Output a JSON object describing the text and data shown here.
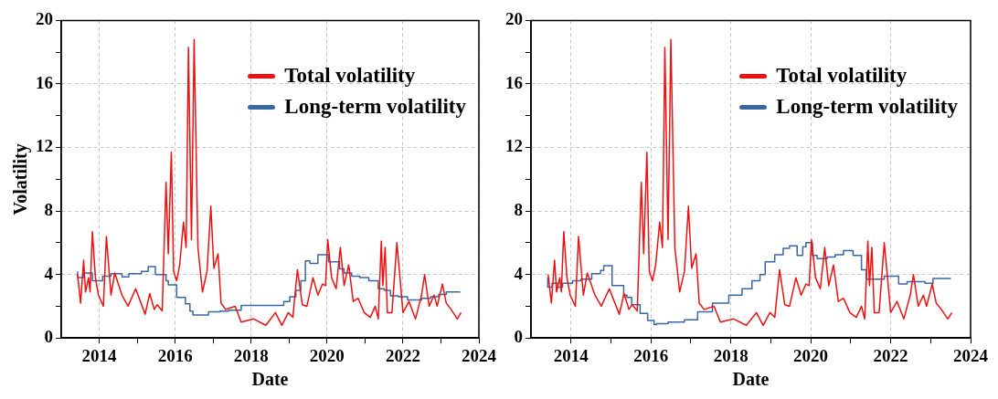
{
  "chart_data": [
    {
      "type": "line",
      "xlabel": "Date",
      "ylabel": "Volatility",
      "xlim": [
        2013,
        2024
      ],
      "ylim": [
        0,
        20
      ],
      "xticks": [
        2014,
        {
          "value": 2015,
          "label": null
        },
        2016,
        {
          "value": 2017,
          "label": null
        },
        2018,
        {
          "value": 2019,
          "label": null
        },
        2020,
        {
          "value": 2021,
          "label": null
        },
        2022,
        {
          "value": 2023,
          "label": null
        },
        2024
      ],
      "yticks": [
        0,
        {
          "value": 2,
          "label": null
        },
        4,
        {
          "value": 6,
          "label": null
        },
        8,
        {
          "value": 10,
          "label": null
        },
        12,
        {
          "value": 14,
          "label": null
        },
        16,
        {
          "value": 18,
          "label": null
        },
        20
      ],
      "grid": true,
      "legend": "top right",
      "series": [
        {
          "name": "Total volatility",
          "type": "line",
          "color": "#ee1111",
          "x": [
            2013.43,
            2013.51,
            2013.59,
            2013.64,
            2013.72,
            2013.76,
            2013.82,
            2013.9,
            2013.98,
            2014.11,
            2014.19,
            2014.31,
            2014.41,
            2014.6,
            2014.76,
            2014.96,
            2015.21,
            2015.33,
            2015.45,
            2015.53,
            2015.66,
            2015.76,
            2015.82,
            2015.9,
            2015.96,
            2016.04,
            2016.12,
            2016.22,
            2016.29,
            2016.35,
            2016.43,
            2016.5,
            2016.6,
            2016.72,
            2016.84,
            2016.94,
            2017.02,
            2017.13,
            2017.21,
            2017.33,
            2017.58,
            2017.74,
            2018.07,
            2018.39,
            2018.64,
            2018.81,
            2018.98,
            2019.1,
            2019.22,
            2019.35,
            2019.47,
            2019.63,
            2019.76,
            2019.88,
            2019.96,
            2020.02,
            2020.12,
            2020.24,
            2020.35,
            2020.45,
            2020.57,
            2020.69,
            2020.82,
            2020.98,
            2021.14,
            2021.27,
            2021.35,
            2021.43,
            2021.47,
            2021.53,
            2021.59,
            2021.71,
            2021.84,
            2021.9,
            2022,
            2022.16,
            2022.33,
            2022.49,
            2022.57,
            2022.69,
            2022.82,
            2022.9,
            2023.04,
            2023.14,
            2023.27,
            2023.43,
            2023.53
          ],
          "values": [
            4.0,
            2.2,
            4.9,
            2.9,
            3.8,
            2.9,
            6.7,
            3.8,
            2.7,
            2.0,
            6.4,
            2.7,
            4.1,
            2.7,
            2.0,
            3.1,
            1.5,
            2.8,
            1.8,
            2.1,
            1.7,
            9.8,
            5.3,
            11.7,
            4.2,
            3.6,
            4.6,
            7.3,
            5.7,
            18.3,
            6.2,
            18.8,
            5.7,
            2.9,
            4.2,
            8.3,
            4.4,
            5.3,
            2.2,
            1.8,
            2.0,
            1.0,
            1.2,
            0.8,
            1.6,
            0.8,
            1.6,
            1.3,
            4.3,
            2.1,
            2.0,
            3.8,
            2.7,
            3.4,
            3.3,
            6.2,
            3.8,
            3.1,
            5.7,
            3.3,
            4.6,
            2.3,
            2.5,
            1.6,
            1.3,
            2.0,
            1.2,
            6.1,
            3.3,
            5.7,
            1.6,
            1.6,
            6.0,
            4.4,
            1.6,
            2.3,
            1.2,
            2.7,
            4.0,
            2.0,
            2.7,
            2.0,
            3.4,
            2.2,
            1.8,
            1.2,
            1.6
          ]
        },
        {
          "name": "Long-term volatility",
          "type": "step",
          "color": "#3a67a3",
          "x": [
            2013.43,
            2013.59,
            2013.82,
            2014.09,
            2014.31,
            2014.6,
            2014.78,
            2015.11,
            2015.29,
            2015.48,
            2015.76,
            2015.82,
            2016.04,
            2016.27,
            2016.39,
            2016.47,
            2016.88,
            2017.18,
            2017.41,
            2017.74,
            2018.86,
            2019.02,
            2019.18,
            2019.31,
            2019.43,
            2019.55,
            2019.76,
            2020.04,
            2020.33,
            2020.45,
            2020.65,
            2020.86,
            2021.1,
            2021.35,
            2021.51,
            2021.67,
            2021.88,
            2022.12,
            2022.49,
            2022.73,
            2022.94,
            2023.14,
            2023.27,
            2023.51
          ],
          "values": [
            4.2,
            3.8,
            4.1,
            3.6,
            3.9,
            4.05,
            3.85,
            4.05,
            4.2,
            4.5,
            4.0,
            3.6,
            3.35,
            2.55,
            2.15,
            1.7,
            1.45,
            1.65,
            1.7,
            1.75,
            2.05,
            2.3,
            2.6,
            3.0,
            3.6,
            4.85,
            4.7,
            5.25,
            4.8,
            4.35,
            4.1,
            3.9,
            3.8,
            3.6,
            3.1,
            3.0,
            2.65,
            2.6,
            2.4,
            2.5,
            2.6,
            2.75,
            2.9,
            2.9
          ]
        }
      ]
    },
    {
      "type": "line",
      "xlabel": "Date",
      "xlim": [
        2013,
        2024
      ],
      "ylim": [
        0,
        20
      ],
      "xticks": [
        2014,
        {
          "value": 2015,
          "label": null
        },
        2016,
        {
          "value": 2017,
          "label": null
        },
        2018,
        {
          "value": 2019,
          "label": null
        },
        2020,
        {
          "value": 2021,
          "label": null
        },
        2022,
        {
          "value": 2023,
          "label": null
        },
        2024
      ],
      "yticks": [
        0,
        {
          "value": 2,
          "label": null
        },
        4,
        {
          "value": 6,
          "label": null
        },
        8,
        {
          "value": 10,
          "label": null
        },
        12,
        {
          "value": 14,
          "label": null
        },
        16,
        {
          "value": 18,
          "label": null
        },
        20
      ],
      "grid": true,
      "legend": "top right",
      "series": [
        {
          "name": "Total volatility",
          "type": "line",
          "color": "#ee1111",
          "x": [
            2013.43,
            2013.51,
            2013.59,
            2013.64,
            2013.72,
            2013.76,
            2013.82,
            2013.9,
            2013.98,
            2014.11,
            2014.19,
            2014.31,
            2014.41,
            2014.6,
            2014.76,
            2014.96,
            2015.21,
            2015.33,
            2015.45,
            2015.53,
            2015.66,
            2015.76,
            2015.82,
            2015.9,
            2015.96,
            2016.04,
            2016.12,
            2016.22,
            2016.29,
            2016.35,
            2016.43,
            2016.5,
            2016.6,
            2016.72,
            2016.84,
            2016.94,
            2017.02,
            2017.13,
            2017.21,
            2017.33,
            2017.58,
            2017.74,
            2018.07,
            2018.39,
            2018.64,
            2018.81,
            2018.98,
            2019.1,
            2019.22,
            2019.35,
            2019.47,
            2019.63,
            2019.76,
            2019.88,
            2019.96,
            2020.02,
            2020.12,
            2020.24,
            2020.35,
            2020.45,
            2020.57,
            2020.69,
            2020.82,
            2020.98,
            2021.14,
            2021.27,
            2021.35,
            2021.43,
            2021.47,
            2021.53,
            2021.59,
            2021.71,
            2021.84,
            2021.9,
            2022,
            2022.16,
            2022.33,
            2022.49,
            2022.57,
            2022.69,
            2022.82,
            2022.9,
            2023.04,
            2023.14,
            2023.27,
            2023.43,
            2023.53
          ],
          "values": [
            4.0,
            2.2,
            4.9,
            2.9,
            3.8,
            2.9,
            6.7,
            3.8,
            2.7,
            2.0,
            6.4,
            2.7,
            4.1,
            2.7,
            2.0,
            3.1,
            1.5,
            2.8,
            1.8,
            2.1,
            1.7,
            9.8,
            5.3,
            11.7,
            4.2,
            3.6,
            4.6,
            7.3,
            5.7,
            18.3,
            6.2,
            18.8,
            5.7,
            2.9,
            4.2,
            8.3,
            4.4,
            5.3,
            2.2,
            1.8,
            2.0,
            1.0,
            1.2,
            0.8,
            1.6,
            0.8,
            1.6,
            1.3,
            4.3,
            2.1,
            2.0,
            3.8,
            2.7,
            3.4,
            3.3,
            6.2,
            3.8,
            3.1,
            5.7,
            3.3,
            4.6,
            2.3,
            2.5,
            1.6,
            1.3,
            2.0,
            1.2,
            6.1,
            3.3,
            5.7,
            1.6,
            1.6,
            6.0,
            4.4,
            1.6,
            2.3,
            1.2,
            2.7,
            4.0,
            2.0,
            2.7,
            2.0,
            3.4,
            2.2,
            1.8,
            1.2,
            1.6
          ]
        },
        {
          "name": "Long-term volatility",
          "type": "step",
          "color": "#3a67a3",
          "x": [
            2013.42,
            2013.53,
            2013.67,
            2013.79,
            2014.04,
            2014.25,
            2014.52,
            2014.74,
            2014.82,
            2015.03,
            2015.32,
            2015.4,
            2015.52,
            2015.73,
            2015.92,
            2016.08,
            2016.14,
            2016.43,
            2016.84,
            2017.17,
            2017.54,
            2017.95,
            2018.28,
            2018.53,
            2018.73,
            2018.86,
            2019.1,
            2019.31,
            2019.47,
            2019.66,
            2019.8,
            2019.88,
            2020.04,
            2020.16,
            2020.41,
            2020.61,
            2020.82,
            2021.06,
            2021.27,
            2021.39,
            2021.84,
            2022.2,
            2022.41,
            2022.86,
            2023.06,
            2023.18,
            2023.51
          ],
          "values": [
            3.8,
            3.2,
            3.45,
            3.2,
            3.45,
            3.6,
            3.7,
            4.05,
            4.25,
            4.55,
            3.3,
            2.7,
            2.55,
            2.1,
            1.55,
            1.1,
            0.85,
            0.9,
            1.0,
            1.15,
            1.65,
            2.2,
            2.7,
            3.1,
            3.6,
            4.0,
            4.8,
            5.25,
            5.65,
            5.8,
            5.2,
            5.75,
            6.0,
            5.2,
            5.0,
            5.1,
            5.25,
            5.5,
            5.2,
            4.3,
            3.7,
            3.9,
            3.4,
            3.55,
            3.45,
            3.75,
            3.75
          ]
        }
      ]
    }
  ]
}
